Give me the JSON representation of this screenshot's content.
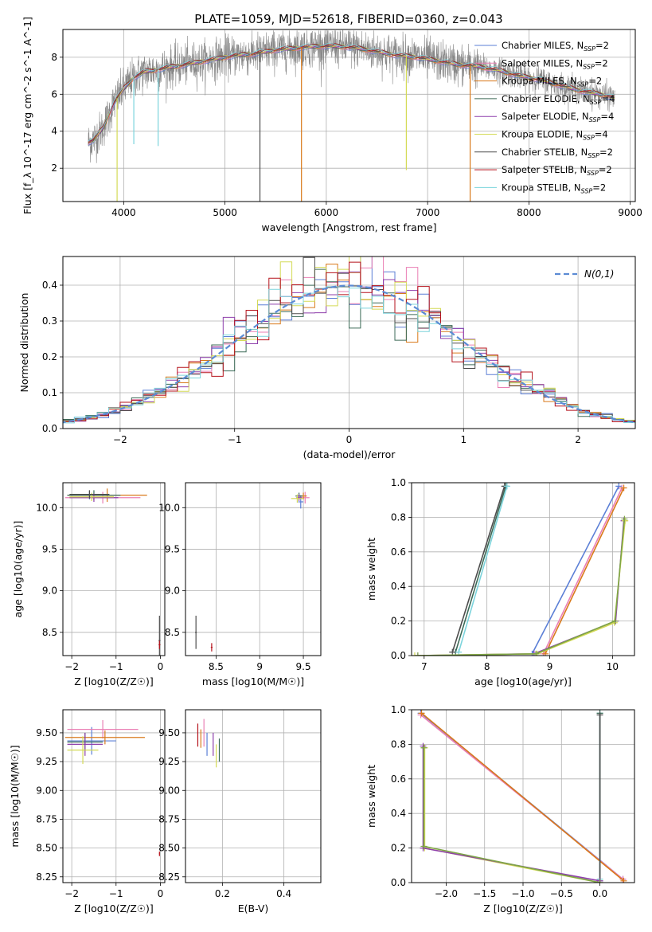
{
  "figure": {
    "title": "PLATE=1059, MJD=52618, FIBERID=0360, z=0.043"
  },
  "series_styles": [
    {
      "name": "Chabrier MILES",
      "nssp": "2",
      "color": "#5b7fd6"
    },
    {
      "name": "Salpeter MILES",
      "nssp": "2",
      "color": "#ea7fb4"
    },
    {
      "name": "Kroupa MILES",
      "nssp": "2",
      "color": "#d97a1b"
    },
    {
      "name": "Chabrier ELODIE",
      "nssp": "4",
      "color": "#3d6b58"
    },
    {
      "name": "Salpeter ELODIE",
      "nssp": "4",
      "color": "#8e3fab"
    },
    {
      "name": "Kroupa ELODIE",
      "nssp": "4",
      "color": "#d4da56"
    },
    {
      "name": "Chabrier STELIB",
      "nssp": "2",
      "color": "#4d4d4d"
    },
    {
      "name": "Salpeter STELIB",
      "nssp": "2",
      "color": "#b5121b"
    },
    {
      "name": "Kroupa STELIB",
      "nssp": "2",
      "color": "#7cd4dc"
    }
  ],
  "chart_data": [
    {
      "id": "spectrum",
      "type": "line",
      "xlabel": "wavelength [Angstrom, rest frame]",
      "ylabel": "Flux [f_λ 10^-17 erg cm^-2 s^-1 A^-1]",
      "xlim": [
        3400,
        9050
      ],
      "ylim": [
        0.2,
        9.5
      ],
      "xticks": [
        4000,
        5000,
        6000,
        7000,
        8000,
        9000
      ],
      "yticks": [
        2,
        4,
        6,
        8
      ],
      "legend_position": "right",
      "data_series": "Observed (grey)",
      "continuum_x": [
        3650,
        3700,
        3800,
        3900,
        4000,
        4100,
        4200,
        4300,
        4400,
        4500,
        4700,
        4900,
        5100,
        5300,
        5500,
        5700,
        5900,
        6100,
        6300,
        6500,
        6700,
        6900,
        7100,
        7300,
        7500,
        7700,
        7900,
        8100,
        8300,
        8500,
        8700,
        8850
      ],
      "continuum_y": [
        3.4,
        3.5,
        4.2,
        5.5,
        6.3,
        6.9,
        7.2,
        7.3,
        7.4,
        7.5,
        7.7,
        7.9,
        8.1,
        8.2,
        8.4,
        8.5,
        8.6,
        8.6,
        8.5,
        8.3,
        8.1,
        8.0,
        7.8,
        7.6,
        7.5,
        7.3,
        7.0,
        6.8,
        6.5,
        6.2,
        6.0,
        5.8
      ],
      "absorption_lines": [
        {
          "x": 3935,
          "y": 0.2,
          "color": "#d4da56"
        },
        {
          "x": 4100,
          "y": 3.3,
          "color": "#7cd4dc"
        },
        {
          "x": 4340,
          "y": 3.2,
          "color": "#7cd4dc"
        },
        {
          "x": 5345,
          "y": 0.2,
          "color": "#4d4d4d"
        },
        {
          "x": 5755,
          "y": 0.2,
          "color": "#d97a1b"
        },
        {
          "x": 6790,
          "y": 1.9,
          "color": "#d4da56"
        },
        {
          "x": 7420,
          "y": 0.2,
          "color": "#d97a1b"
        }
      ]
    },
    {
      "id": "residual-histogram",
      "type": "line",
      "xlabel": "(data-model)/error",
      "ylabel": "Normed distribution",
      "xlim": [
        -2.5,
        2.5
      ],
      "ylim": [
        0.0,
        0.48
      ],
      "xticks": [
        -2,
        -1,
        0,
        1,
        2
      ],
      "yticks": [
        0.0,
        0.1,
        0.2,
        0.3,
        0.4
      ],
      "legend": "N(0,1)",
      "legend_position": "top-right",
      "bin_width": 0.1
    },
    {
      "id": "age-vs-Z",
      "type": "scatter",
      "xlabel": "Z [log10(Z/Z☉)]",
      "ylabel": "age  [log10(age/yr)]",
      "xlim": [
        -2.2,
        0.1
      ],
      "ylim": [
        8.22,
        10.3
      ],
      "xticks": [
        -2,
        -1,
        0
      ],
      "yticks": [
        8.5,
        9.0,
        9.5,
        10.0
      ],
      "points": [
        {
          "x": -1.6,
          "y": 10.15,
          "xerr": 0.45,
          "yerr": 0.05,
          "color": "#5b7fd6"
        },
        {
          "x": -1.3,
          "y": 10.12,
          "xerr": 0.85,
          "yerr": 0.07,
          "color": "#ea7fb4"
        },
        {
          "x": -1.2,
          "y": 10.15,
          "xerr": 0.9,
          "yerr": 0.08,
          "color": "#d97a1b"
        },
        {
          "x": -1.5,
          "y": 10.15,
          "xerr": 0.6,
          "yerr": 0.06,
          "color": "#3d6b58"
        },
        {
          "x": -1.5,
          "y": 10.12,
          "xerr": 0.55,
          "yerr": 0.05,
          "color": "#8e3fab"
        },
        {
          "x": -1.55,
          "y": 10.13,
          "xerr": 0.5,
          "yerr": 0.05,
          "color": "#d4da56"
        },
        {
          "x": -1.6,
          "y": 10.16,
          "xerr": 0.45,
          "yerr": 0.05,
          "color": "#4d4d4d"
        },
        {
          "x": -0.02,
          "y": 8.4,
          "xerr": 0.02,
          "yerr": 0.3,
          "color": "#4d4d4d"
        },
        {
          "x": -0.02,
          "y": 8.35,
          "xerr": 0.02,
          "yerr": 0.05,
          "color": "#b5121b"
        }
      ]
    },
    {
      "id": "age-vs-mass",
      "type": "scatter",
      "xlabel": "mass [log10(M/M☉)]",
      "xlim": [
        8.15,
        9.7
      ],
      "ylim": [
        8.22,
        10.3
      ],
      "xticks": [
        8.5,
        9.0,
        9.5
      ],
      "yticks": [
        8.5,
        9.0,
        9.5,
        10.0
      ],
      "points": [
        {
          "x": 9.47,
          "y": 10.07,
          "xerr": 0.03,
          "yerr": 0.08,
          "color": "#5b7fd6"
        },
        {
          "x": 9.52,
          "y": 10.12,
          "xerr": 0.05,
          "yerr": 0.07,
          "color": "#ea7fb4"
        },
        {
          "x": 9.5,
          "y": 10.14,
          "xerr": 0.04,
          "yerr": 0.04,
          "color": "#d97a1b"
        },
        {
          "x": 9.45,
          "y": 10.14,
          "xerr": 0.04,
          "yerr": 0.04,
          "color": "#3d6b58"
        },
        {
          "x": 9.45,
          "y": 10.12,
          "xerr": 0.03,
          "yerr": 0.04,
          "color": "#8e3fab"
        },
        {
          "x": 9.43,
          "y": 10.11,
          "xerr": 0.07,
          "yerr": 0.05,
          "color": "#d4da56"
        },
        {
          "x": 8.27,
          "y": 8.5,
          "xerr": 0.01,
          "yerr": 0.2,
          "color": "#4d4d4d"
        },
        {
          "x": 8.45,
          "y": 8.32,
          "xerr": 0.01,
          "yerr": 0.05,
          "color": "#b5121b"
        }
      ]
    },
    {
      "id": "mass-weight-vs-age",
      "type": "line",
      "xlabel": "age  [log10(age/yr)]",
      "ylabel": "mass weight",
      "xlim": [
        6.8,
        10.35
      ],
      "ylim": [
        0.0,
        1.0
      ],
      "xticks": [
        7,
        8,
        9,
        10
      ],
      "yticks": [
        0.0,
        0.2,
        0.4,
        0.6,
        0.8,
        1.0
      ],
      "series": [
        {
          "color": "#5b7fd6",
          "x": [
            8.72,
            10.1
          ],
          "y": [
            0.01,
            0.98
          ]
        },
        {
          "color": "#ea7fb4",
          "x": [
            8.9,
            10.15
          ],
          "y": [
            0.01,
            0.97
          ]
        },
        {
          "color": "#d97a1b",
          "x": [
            8.93,
            10.18
          ],
          "y": [
            0.01,
            0.97
          ]
        },
        {
          "color": "#3d6b58",
          "x": [
            7.5,
            8.3
          ],
          "y": [
            0.02,
            0.98
          ]
        },
        {
          "color": "#4d4d4d",
          "x": [
            7.45,
            8.28
          ],
          "y": [
            0.02,
            0.98
          ]
        },
        {
          "color": "#7cd4dc",
          "x": [
            7.55,
            8.32
          ],
          "y": [
            0.02,
            0.98
          ]
        },
        {
          "color": "#8e3fab",
          "x": [
            6.9,
            8.75,
            10.05,
            10.18
          ],
          "y": [
            0.0,
            0.01,
            0.2,
            0.78
          ]
        },
        {
          "color": "#d4da56",
          "x": [
            6.85,
            8.8,
            10.03,
            10.2
          ],
          "y": [
            0.0,
            0.01,
            0.19,
            0.78
          ]
        },
        {
          "color": "#7ea646",
          "x": [
            6.9,
            8.78,
            10.04,
            10.19
          ],
          "y": [
            0.0,
            0.01,
            0.2,
            0.79
          ]
        }
      ]
    },
    {
      "id": "mass-vs-Z",
      "type": "scatter",
      "xlabel": "Z [log10(Z/Z☉)]",
      "ylabel": "mass [log10(M/M☉)]",
      "xlim": [
        -2.2,
        0.1
      ],
      "ylim": [
        8.2,
        9.7
      ],
      "xticks": [
        -2,
        -1,
        0
      ],
      "yticks": [
        8.25,
        8.5,
        8.75,
        9.0,
        9.25,
        9.5
      ],
      "points": [
        {
          "x": -1.55,
          "y": 9.43,
          "xerr": 0.55,
          "yerr": 0.12,
          "color": "#5b7fd6"
        },
        {
          "x": -1.3,
          "y": 9.53,
          "xerr": 0.8,
          "yerr": 0.08,
          "color": "#ea7fb4"
        },
        {
          "x": -1.25,
          "y": 9.46,
          "xerr": 0.9,
          "yerr": 0.06,
          "color": "#d97a1b"
        },
        {
          "x": -1.7,
          "y": 9.42,
          "xerr": 0.4,
          "yerr": 0.08,
          "color": "#3d6b58"
        },
        {
          "x": -1.7,
          "y": 9.4,
          "xerr": 0.4,
          "yerr": 0.1,
          "color": "#8e3fab"
        },
        {
          "x": -1.75,
          "y": 9.35,
          "xerr": 0.35,
          "yerr": 0.12,
          "color": "#d4da56"
        },
        {
          "x": -0.02,
          "y": 8.45,
          "xerr": 0.01,
          "yerr": 0.02,
          "color": "#b5121b"
        }
      ]
    },
    {
      "id": "mass-vs-EBV",
      "type": "scatter",
      "xlabel": "E(B-V)",
      "xlim": [
        0.08,
        0.52
      ],
      "ylim": [
        8.2,
        9.7
      ],
      "xticks": [
        0.2,
        0.4
      ],
      "yticks": [
        8.25,
        8.5,
        8.75,
        9.0,
        9.25,
        9.5
      ],
      "points": [
        {
          "x": 0.15,
          "y": 9.4,
          "yerr": 0.1,
          "color": "#5b7fd6"
        },
        {
          "x": 0.14,
          "y": 9.5,
          "yerr": 0.12,
          "color": "#ea7fb4"
        },
        {
          "x": 0.13,
          "y": 9.45,
          "yerr": 0.08,
          "color": "#d97a1b"
        },
        {
          "x": 0.19,
          "y": 9.35,
          "yerr": 0.1,
          "color": "#3d6b58"
        },
        {
          "x": 0.17,
          "y": 9.4,
          "yerr": 0.1,
          "color": "#8e3fab"
        },
        {
          "x": 0.18,
          "y": 9.3,
          "yerr": 0.1,
          "color": "#d4da56"
        },
        {
          "x": 0.12,
          "y": 9.48,
          "yerr": 0.1,
          "color": "#b5121b"
        }
      ]
    },
    {
      "id": "mass-weight-vs-Z",
      "type": "line",
      "xlabel": "Z [log10(Z/Z☉)]",
      "ylabel": "mass weight",
      "xlim": [
        -2.45,
        0.45
      ],
      "ylim": [
        0.0,
        1.0
      ],
      "xticks": [
        -2.0,
        -1.5,
        -1.0,
        -0.5,
        0.0
      ],
      "yticks": [
        0.0,
        0.2,
        0.4,
        0.6,
        0.8,
        1.0
      ],
      "series": [
        {
          "color": "#5b7fd6",
          "x": [
            -2.33,
            0.3
          ],
          "y": [
            0.98,
            0.02
          ]
        },
        {
          "color": "#ea7fb4",
          "x": [
            -2.33,
            0.3
          ],
          "y": [
            0.97,
            0.02
          ]
        },
        {
          "color": "#d97a1b",
          "x": [
            -2.32,
            0.31
          ],
          "y": [
            0.98,
            0.01
          ]
        },
        {
          "color": "#7cd4dc",
          "x": [
            0.0,
            0.0
          ],
          "y": [
            0.02,
            0.98
          ]
        },
        {
          "color": "#3d6b58",
          "x": [
            0.0,
            0.0
          ],
          "y": [
            0.0,
            0.98
          ]
        },
        {
          "color": "#4d4d4d",
          "x": [
            0.0,
            0.0
          ],
          "y": [
            0.01,
            0.97
          ]
        },
        {
          "color": "#d4da56",
          "x": [
            -2.28,
            -2.28,
            0.0
          ],
          "y": [
            0.78,
            0.2,
            0.0
          ]
        },
        {
          "color": "#8e3fab",
          "x": [
            -2.3,
            -2.3,
            0.0
          ],
          "y": [
            0.79,
            0.2,
            0.01
          ]
        },
        {
          "color": "#7ea646",
          "x": [
            -2.29,
            -2.29,
            0.0
          ],
          "y": [
            0.78,
            0.21,
            0.0
          ]
        }
      ]
    }
  ]
}
